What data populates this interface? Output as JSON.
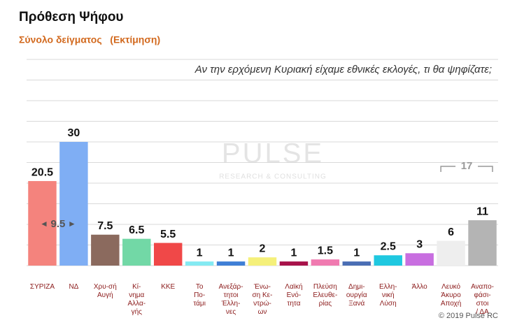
{
  "chart_data": {
    "type": "bar",
    "title": "Πρόθεση Ψήφου",
    "subtitle": "Σύνολο δείγματος   (Εκτίμηση)",
    "question": "Αν την ερχόμενη Κυριακή είχαμε εθνικές εκλογές, τι θα ψηφίζατε;",
    "watermark": [
      "PULSE",
      "RESEARCH & CONSULTING"
    ],
    "copyright": "© 2019 Pulse RC",
    "categories": [
      [
        "ΣΥΡΙΖΑ"
      ],
      [
        "ΝΔ"
      ],
      [
        "Χρυ-σή",
        "Αυγή"
      ],
      [
        "Κί-",
        "νημα",
        "Αλλα-",
        "γής"
      ],
      [
        "ΚΚΕ"
      ],
      [
        "Το",
        "Πο-",
        "τάμι"
      ],
      [
        "Ανεξάρ-",
        "τητοι",
        "Έλλη-",
        "νες"
      ],
      [
        "Ένω-",
        "ση Κε-",
        "ντρώ-",
        "ων"
      ],
      [
        "Λαϊκή",
        "Ενό-",
        "τητα"
      ],
      [
        "Πλεύση",
        "Ελευθε-",
        "ρίας"
      ],
      [
        "Δημι-",
        "ουργία",
        "Ξανά"
      ],
      [
        "Ελλη-",
        "νική",
        "Λύση"
      ],
      [
        "Άλλο"
      ],
      [
        "Λευκό",
        "Άκυρο",
        "Αποχή"
      ],
      [
        "Αναπο-",
        "φάσι-",
        "στοι",
        "/ ΔΑ"
      ]
    ],
    "values": [
      20.5,
      30,
      7.5,
      6.5,
      5.5,
      1,
      1,
      2,
      1,
      1.5,
      1,
      2.5,
      3,
      6,
      11
    ],
    "colors": [
      "#f4837d",
      "#7faef4",
      "#8b6a5e",
      "#72d8a6",
      "#f04848",
      "#84eaf2",
      "#3f7fd6",
      "#f5f07a",
      "#a8124a",
      "#f07ab0",
      "#4a6eb4",
      "#1fc8e0",
      "#c86ee0",
      "#eeeeee",
      "#b4b4b4"
    ],
    "ylim": [
      0,
      50
    ],
    "yticks": [
      0,
      5,
      10,
      15,
      20,
      25,
      30,
      35,
      40,
      45,
      50
    ],
    "grid": true,
    "annotations": [
      {
        "text": "9.5",
        "value": 9.5,
        "between": [
          0,
          1
        ]
      },
      {
        "text": "17",
        "value": 17,
        "between": [
          13,
          14
        ]
      }
    ]
  }
}
